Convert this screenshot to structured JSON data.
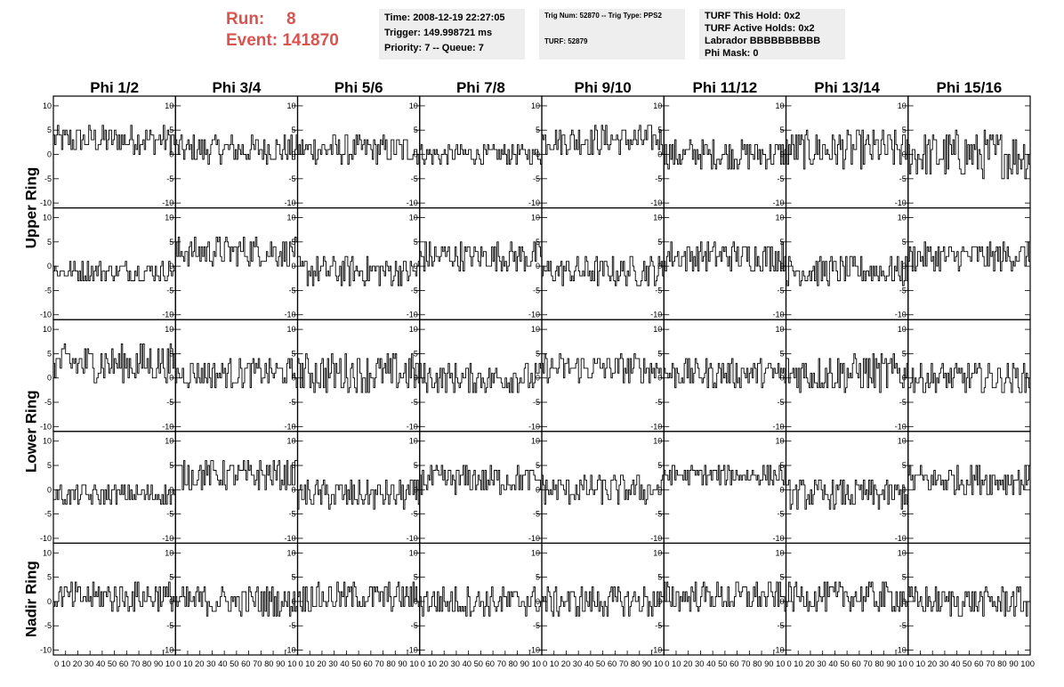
{
  "header": {
    "run_label": "Run:",
    "run_value": "8",
    "event_label": "Event:",
    "event_value": "141870",
    "accent_color": "#d9534f"
  },
  "info": {
    "time": "Time: 2008-12-19 22:27:05",
    "trigger": "Trigger: 149.998721 ms",
    "priority": "Priority: 7 -- Queue: 7",
    "trig_num": "Trig Num: 52870 -- Trig Type: PPS2",
    "turf": "TURF: 52879",
    "turf_hold": "TURF This Hold: 0x2",
    "turf_active": "TURF Active Holds: 0x2",
    "labrador": "Labrador BBBBBBBBBB",
    "phi_mask": "Phi Mask: 0"
  },
  "chart_data": {
    "type": "line",
    "columns": [
      "Phi 1/2",
      "Phi 3/4",
      "Phi 5/6",
      "Phi 7/8",
      "Phi 9/10",
      "Phi 11/12",
      "Phi 13/14",
      "Phi 15/16"
    ],
    "rings": [
      "Upper Ring",
      "Lower Ring",
      "Nadir Ring"
    ],
    "rows_per_ring": 2,
    "xlim": [
      0,
      100
    ],
    "ylim": [
      -11,
      12
    ],
    "yticks": [
      10,
      5,
      0,
      -5,
      -10
    ],
    "xticks": [
      0,
      10,
      20,
      30,
      40,
      50,
      60,
      70,
      80,
      90,
      100
    ],
    "x_tick_labels": [
      "0 10 20 30 40 50 60 70 80 90 10",
      "0 10 20 30 40 50 60 70 80 90 10",
      "0 10 20 30 40 50 60 70 80 90 10",
      "0 10 20 30 40 50 60 70 80 90 10",
      "0 10 20 30 40 50 60 70 80 90 10",
      "0 10 20 30 40 50 60 70 80 90 10",
      "0 10 20 30 40 50 60 70 80 90 10",
      "0 10 20 30 40 50 60 70 80 90 100"
    ],
    "points_per_trace": 90,
    "line_color": "#000000",
    "trace_offsets": [
      [
        3,
        1,
        1,
        0,
        3,
        0,
        1,
        0
      ],
      [
        -1,
        3,
        -1,
        2,
        -1,
        2,
        -1,
        2
      ],
      [
        3,
        1,
        1,
        0,
        2,
        1,
        1,
        0
      ],
      [
        -1,
        3,
        -1,
        2,
        0,
        3,
        -1,
        2
      ],
      [
        1,
        0,
        1,
        0,
        0,
        1,
        1,
        0
      ]
    ],
    "trace_amplitudes": [
      [
        3,
        3,
        3,
        2,
        3,
        3,
        4,
        5
      ],
      [
        2,
        3,
        3,
        3,
        3,
        3,
        3,
        3
      ],
      [
        4,
        3,
        4,
        3,
        3,
        3,
        4,
        3
      ],
      [
        2,
        3,
        3,
        3,
        3,
        2,
        3,
        3
      ],
      [
        3,
        3,
        3,
        3,
        3,
        3,
        3,
        3
      ]
    ]
  }
}
